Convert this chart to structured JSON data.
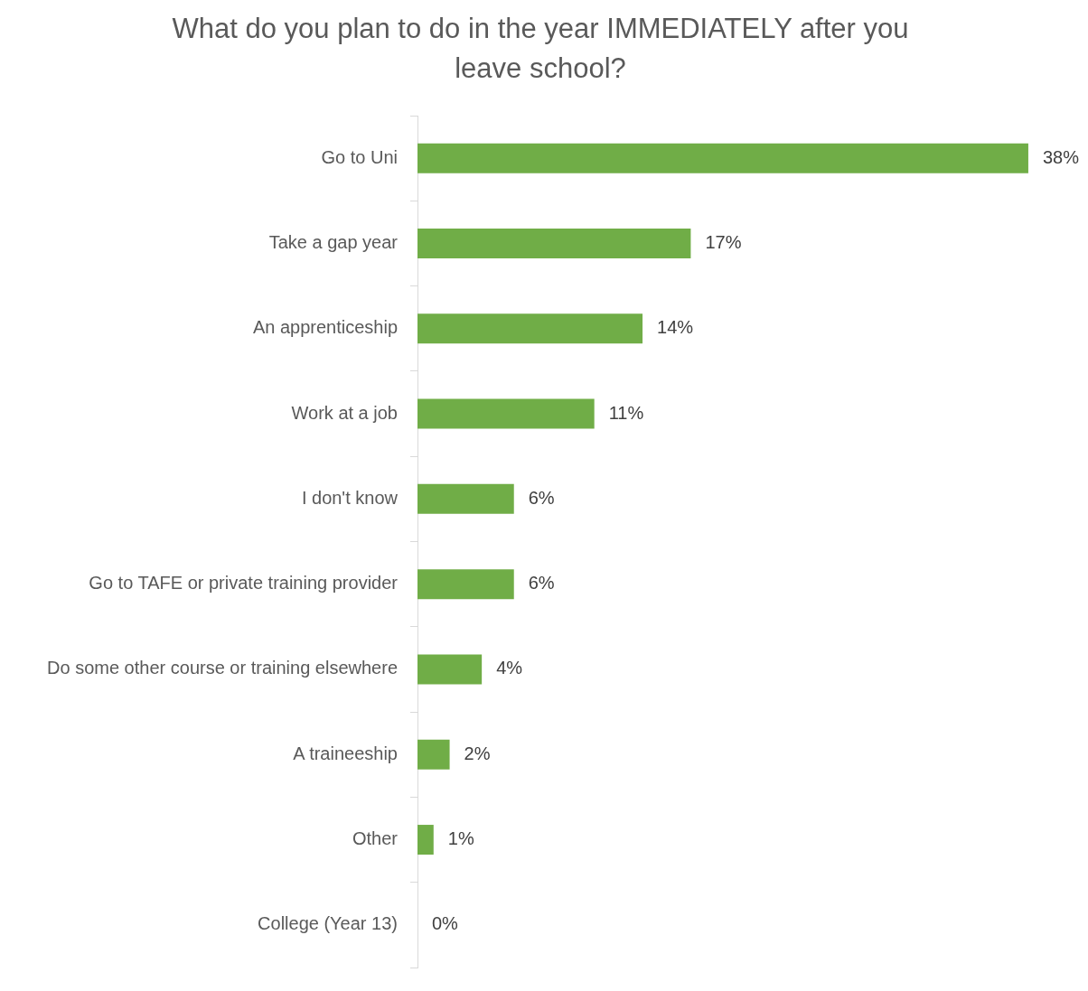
{
  "chart_data": {
    "type": "bar",
    "orientation": "horizontal",
    "title": "What do you plan to do in the year IMMEDIATELY after you leave school?",
    "categories": [
      "Go to Uni",
      "Take a gap year",
      "An apprenticeship",
      "Work at a job",
      "I don't know",
      "Go to TAFE or private training provider",
      "Do some other course or training elsewhere",
      "A traineeship",
      "Other",
      "College (Year 13)"
    ],
    "values": [
      38,
      17,
      14,
      11,
      6,
      6,
      4,
      2,
      1,
      0
    ],
    "value_labels": [
      "38%",
      "17%",
      "14%",
      "11%",
      "6%",
      "6%",
      "4%",
      "2%",
      "1%",
      "0%"
    ],
    "color": "#70ad47",
    "grid": false,
    "legend": false
  }
}
